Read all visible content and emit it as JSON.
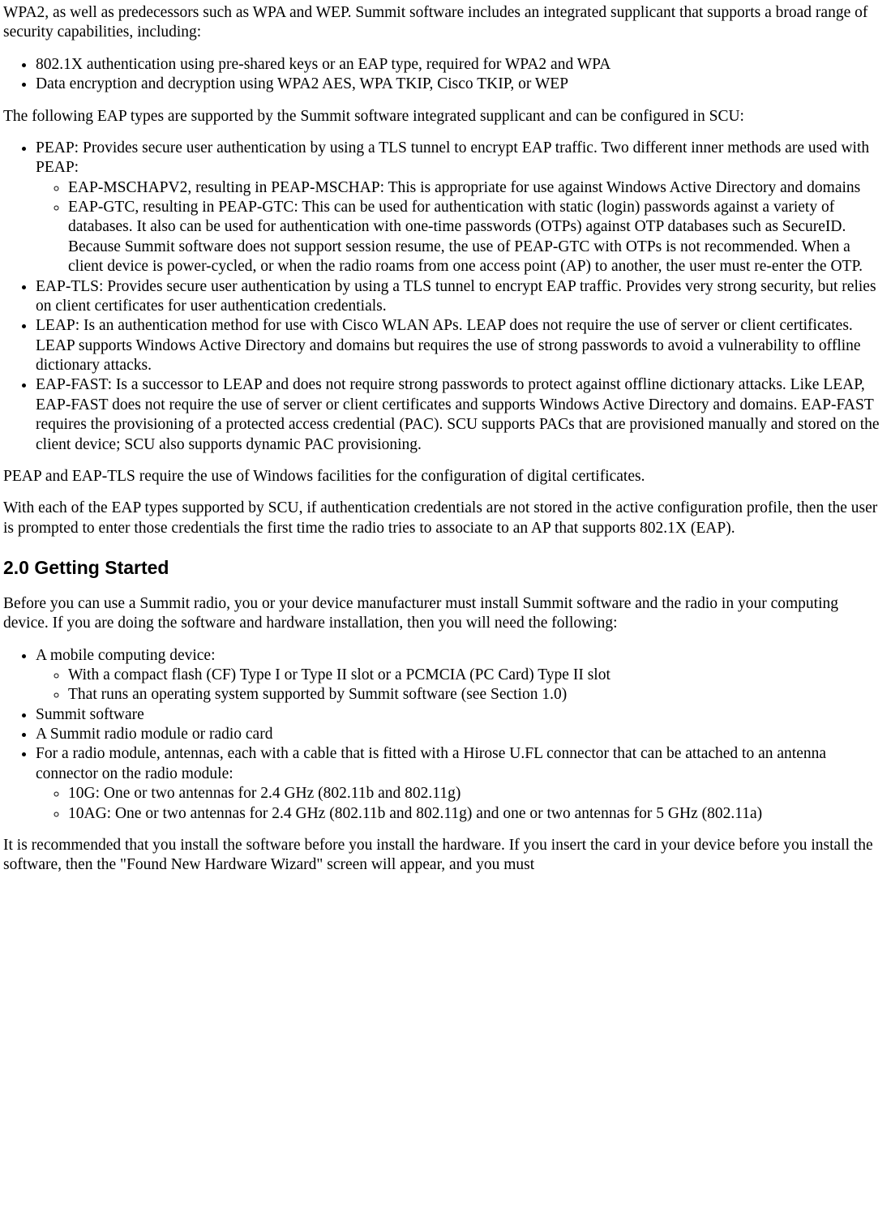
{
  "intro1": "WPA2, as well as predecessors such as WPA and WEP. Summit software includes an integrated supplicant that supports a broad range of security capabilities, including:",
  "caps": [
    "802.1X authentication using pre-shared keys or an EAP type, required for WPA2 and WPA",
    "Data encryption and decryption using WPA2 AES, WPA TKIP, Cisco TKIP, or WEP"
  ],
  "intro2": "The following EAP types are supported by the Summit software integrated supplicant and can be configured in SCU:",
  "eap": {
    "peap": "PEAP: Provides secure user authentication by using a TLS tunnel to encrypt EAP traffic. Two different inner methods are used with PEAP:",
    "peap_sub": [
      "EAP-MSCHAPV2, resulting in PEAP-MSCHAP: This is appropriate for use against Windows Active Directory and domains",
      "EAP-GTC, resulting in PEAP-GTC: This can be used for authentication with static (login) passwords against a variety of databases. It also can be used for authentication with one-time passwords (OTPs) against OTP databases such as SecureID. Because Summit software does not support session resume, the use of PEAP-GTC with OTPs is not recommended. When a client device is power-cycled, or when the radio roams from one access point (AP) to another, the user must re-enter the OTP."
    ],
    "tls": "EAP-TLS: Provides secure user authentication by using a TLS tunnel to encrypt EAP traffic. Provides very strong security, but relies on client certificates for user authentication credentials.",
    "leap": "LEAP: Is an authentication method for use with Cisco WLAN APs. LEAP does not require the use of server or client certificates. LEAP supports Windows Active Directory and domains but requires the use of strong passwords to avoid a vulnerability to offline dictionary attacks.",
    "fast": "EAP-FAST: Is a successor to LEAP and does not require strong passwords to protect against offline dictionary attacks. Like LEAP, EAP-FAST does not require the use of server or client certificates and supports Windows Active Directory and domains. EAP-FAST requires the provisioning of a protected access credential (PAC). SCU supports PACs that are provisioned manually and stored on the client device; SCU also supports dynamic PAC provisioning."
  },
  "p_cert": "PEAP and EAP-TLS require the use of Windows facilities for the configuration of digital certificates.",
  "p_creds": "With each of the EAP types supported by SCU, if authentication credentials are not stored in the active configuration profile, then the user is prompted to enter those credentials the first time the radio tries to associate to an AP that supports 802.1X (EAP).",
  "h2": "2.0 Getting Started",
  "gs_intro": "Before you can use a Summit radio, you or your device manufacturer must install Summit software and the radio in your computing device. If you are doing the software and hardware installation, then you will need the following:",
  "gs": {
    "mobile": "A mobile computing device:",
    "mobile_sub": [
      "With a compact flash (CF) Type I or Type II slot or a PCMCIA (PC Card) Type II slot",
      "That runs an operating system supported by Summit software (see Section 1.0)"
    ],
    "sw": "Summit software",
    "radio": "A Summit radio module or radio card",
    "ant": "For a radio module, antennas, each with a cable that is fitted with a Hirose U.FL connector that can be attached to an antenna connector on the radio module:",
    "ant_sub": [
      "10G: One or two antennas for 2.4 GHz (802.11b and 802.11g)",
      "10AG: One or two antennas for 2.4 GHz (802.11b and 802.11g) and one or two antennas for 5 GHz (802.11a)"
    ]
  },
  "gs_outro": "It is recommended that you install the software before you install the hardware. If you insert the card in your device before you install the software, then the \"Found New Hardware Wizard\" screen will appear, and you must"
}
